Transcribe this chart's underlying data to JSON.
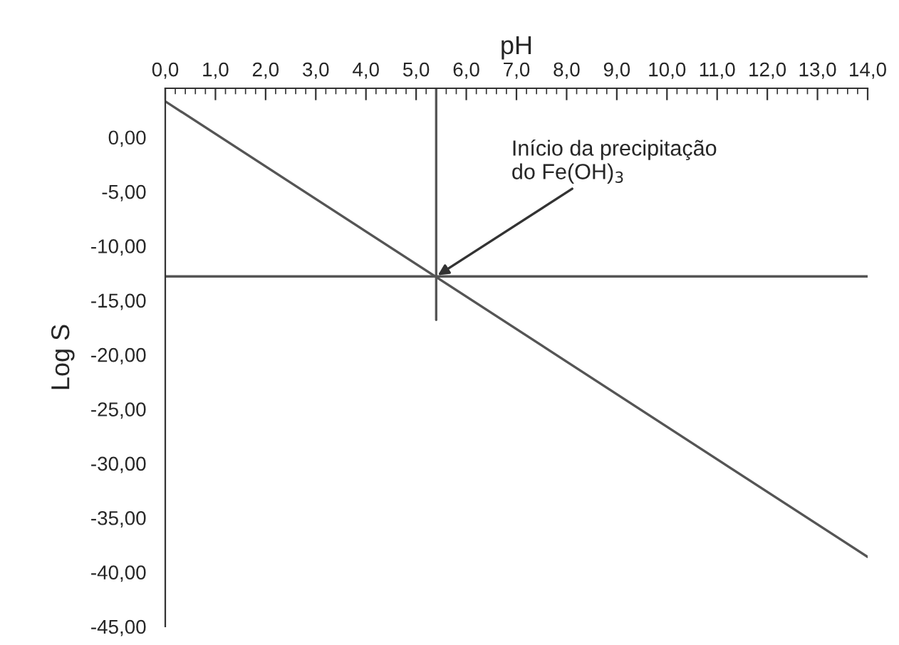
{
  "chart_data": {
    "type": "line",
    "xlabel": "pH",
    "ylabel": "Log S",
    "xlim": [
      0,
      14
    ],
    "ylim": [
      -45,
      4.5
    ],
    "xticks": [
      {
        "value": 0,
        "label": "0,0"
      },
      {
        "value": 1,
        "label": "1,0"
      },
      {
        "value": 2,
        "label": "2,0"
      },
      {
        "value": 3,
        "label": "3,0"
      },
      {
        "value": 4,
        "label": "4,0"
      },
      {
        "value": 5,
        "label": "5,0"
      },
      {
        "value": 6,
        "label": "6,0"
      },
      {
        "value": 7,
        "label": "7,0"
      },
      {
        "value": 8,
        "label": "8,0"
      },
      {
        "value": 9,
        "label": "9,0"
      },
      {
        "value": 10,
        "label": "10,0"
      },
      {
        "value": 11,
        "label": "11,0"
      },
      {
        "value": 12,
        "label": "12,0"
      },
      {
        "value": 13,
        "label": "13,0"
      },
      {
        "value": 14,
        "label": "14,0"
      }
    ],
    "yticks": [
      {
        "value": 0,
        "label": "0,00"
      },
      {
        "value": -5,
        "label": "-5,00"
      },
      {
        "value": -10,
        "label": "-10,00"
      },
      {
        "value": -15,
        "label": "-15,00"
      },
      {
        "value": -20,
        "label": "-20,00"
      },
      {
        "value": -25,
        "label": "-25,00"
      },
      {
        "value": -30,
        "label": "-30,00"
      },
      {
        "value": -35,
        "label": "-35,00"
      },
      {
        "value": -40,
        "label": "-40,00"
      },
      {
        "value": -45,
        "label": "-45,00"
      }
    ],
    "series": [
      {
        "color": "#555555",
        "x": [
          0,
          14
        ],
        "values": [
          3.3,
          -38.6
        ]
      },
      {
        "color": "#555555",
        "x": [
          0,
          14
        ],
        "values": [
          -12.8,
          -12.8
        ]
      },
      {
        "color": "#555555",
        "x": [
          5.4,
          5.4
        ],
        "values": [
          4.5,
          -16.8
        ]
      }
    ],
    "annotations": [
      {
        "text": "Início da precipitação\ndo Fe(OH)$_{3}$",
        "x": 5.4,
        "y": -12.8
      }
    ],
    "grid": false,
    "legend": false
  }
}
